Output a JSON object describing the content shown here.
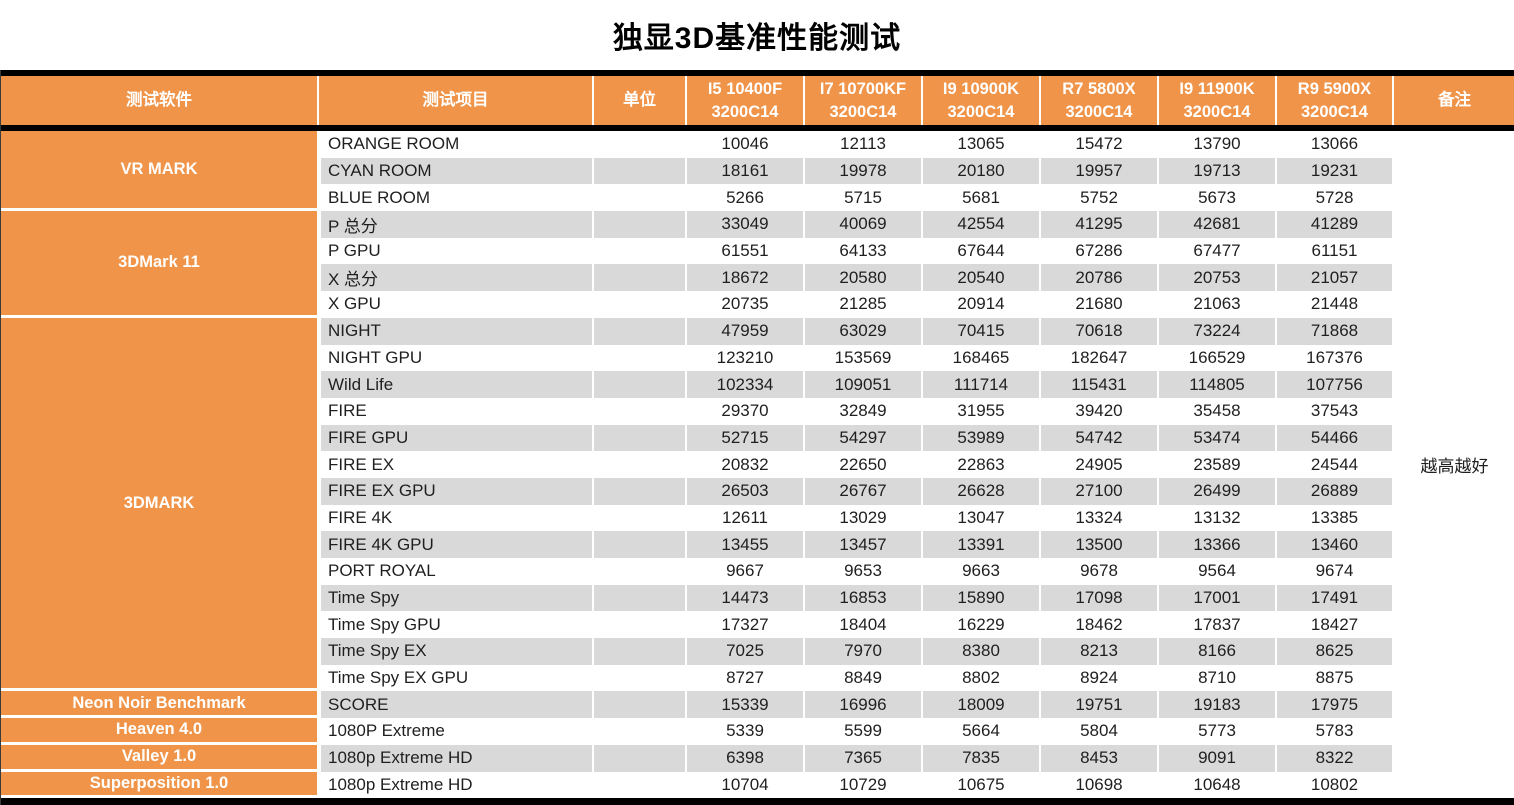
{
  "title": "独显3D基准性能测试",
  "colors": {
    "orange": "#F09449",
    "stripe": "#D9D9D9",
    "band": "#000000"
  },
  "header": {
    "software": "测试软件",
    "item": "测试项目",
    "unit": "单位",
    "cpus": [
      {
        "line1": "I5 10400F",
        "line2": "3200C14"
      },
      {
        "line1": "I7 10700KF",
        "line2": "3200C14"
      },
      {
        "line1": "I9 10900K",
        "line2": "3200C14"
      },
      {
        "line1": "R7 5800X",
        "line2": "3200C14"
      },
      {
        "line1": "I9 11900K",
        "line2": "3200C14"
      },
      {
        "line1": "R9 5900X",
        "line2": "3200C14"
      }
    ],
    "remark": "备注"
  },
  "chart_data": {
    "type": "table",
    "title": "独显3D基准性能测试",
    "columns": [
      "测试软件",
      "测试项目",
      "单位",
      "I5 10400F 3200C14",
      "I7 10700KF 3200C14",
      "I9 10900K 3200C14",
      "R7 5800X 3200C14",
      "I9 11900K 3200C14",
      "R9 5900X 3200C14",
      "备注"
    ],
    "remark": "越高越好",
    "groups": [
      {
        "software": "VR MARK",
        "rows": [
          {
            "item": "ORANGE ROOM",
            "unit": "",
            "values": [
              "10046",
              "12113",
              "13065",
              "15472",
              "13790",
              "13066"
            ]
          },
          {
            "item": "CYAN ROOM",
            "unit": "",
            "values": [
              "18161",
              "19978",
              "20180",
              "19957",
              "19713",
              "19231"
            ]
          },
          {
            "item": "BLUE ROOM",
            "unit": "",
            "values": [
              "5266",
              "5715",
              "5681",
              "5752",
              "5673",
              "5728"
            ]
          }
        ]
      },
      {
        "software": "3DMark 11",
        "rows": [
          {
            "item": "P 总分",
            "unit": "",
            "values": [
              "33049",
              "40069",
              "42554",
              "41295",
              "42681",
              "41289"
            ]
          },
          {
            "item": "P GPU",
            "unit": "",
            "values": [
              "61551",
              "64133",
              "67644",
              "67286",
              "67477",
              "61151"
            ]
          },
          {
            "item": "X 总分",
            "unit": "",
            "values": [
              "18672",
              "20580",
              "20540",
              "20786",
              "20753",
              "21057"
            ]
          },
          {
            "item": "X GPU",
            "unit": "",
            "values": [
              "20735",
              "21285",
              "20914",
              "21680",
              "21063",
              "21448"
            ]
          }
        ]
      },
      {
        "software": "3DMARK",
        "rows": [
          {
            "item": "NIGHT",
            "unit": "",
            "values": [
              "47959",
              "63029",
              "70415",
              "70618",
              "73224",
              "71868"
            ]
          },
          {
            "item": "NIGHT GPU",
            "unit": "",
            "values": [
              "123210",
              "153569",
              "168465",
              "182647",
              "166529",
              "167376"
            ]
          },
          {
            "item": "Wild Life",
            "unit": "",
            "values": [
              "102334",
              "109051",
              "111714",
              "115431",
              "114805",
              "107756"
            ]
          },
          {
            "item": "FIRE",
            "unit": "",
            "values": [
              "29370",
              "32849",
              "31955",
              "39420",
              "35458",
              "37543"
            ]
          },
          {
            "item": "FIRE GPU",
            "unit": "",
            "values": [
              "52715",
              "54297",
              "53989",
              "54742",
              "53474",
              "54466"
            ]
          },
          {
            "item": "FIRE EX",
            "unit": "",
            "values": [
              "20832",
              "22650",
              "22863",
              "24905",
              "23589",
              "24544"
            ]
          },
          {
            "item": "FIRE EX GPU",
            "unit": "",
            "values": [
              "26503",
              "26767",
              "26628",
              "27100",
              "26499",
              "26889"
            ]
          },
          {
            "item": "FIRE 4K",
            "unit": "",
            "values": [
              "12611",
              "13029",
              "13047",
              "13324",
              "13132",
              "13385"
            ]
          },
          {
            "item": "FIRE 4K GPU",
            "unit": "",
            "values": [
              "13455",
              "13457",
              "13391",
              "13500",
              "13366",
              "13460"
            ]
          },
          {
            "item": "PORT ROYAL",
            "unit": "",
            "values": [
              "9667",
              "9653",
              "9663",
              "9678",
              "9564",
              "9674"
            ]
          },
          {
            "item": "Time Spy",
            "unit": "",
            "values": [
              "14473",
              "16853",
              "15890",
              "17098",
              "17001",
              "17491"
            ]
          },
          {
            "item": "Time Spy GPU",
            "unit": "",
            "values": [
              "17327",
              "18404",
              "16229",
              "18462",
              "17837",
              "18427"
            ]
          },
          {
            "item": "Time Spy EX",
            "unit": "",
            "values": [
              "7025",
              "7970",
              "8380",
              "8213",
              "8166",
              "8625"
            ]
          },
          {
            "item": "Time Spy EX GPU",
            "unit": "",
            "values": [
              "8727",
              "8849",
              "8802",
              "8924",
              "8710",
              "8875"
            ]
          }
        ]
      },
      {
        "software": "Neon Noir Benchmark",
        "rows": [
          {
            "item": "SCORE",
            "unit": "",
            "values": [
              "15339",
              "16996",
              "18009",
              "19751",
              "19183",
              "17975"
            ]
          }
        ]
      },
      {
        "software": "Heaven 4.0",
        "rows": [
          {
            "item": "1080P Extreme",
            "unit": "",
            "values": [
              "5339",
              "5599",
              "5664",
              "5804",
              "5773",
              "5783"
            ]
          }
        ]
      },
      {
        "software": "Valley 1.0",
        "rows": [
          {
            "item": "1080p Extreme HD",
            "unit": "",
            "values": [
              "6398",
              "7365",
              "7835",
              "8453",
              "9091",
              "8322"
            ]
          }
        ]
      },
      {
        "software": "Superposition 1.0",
        "rows": [
          {
            "item": "1080p Extreme HD",
            "unit": "",
            "values": [
              "10704",
              "10729",
              "10675",
              "10698",
              "10648",
              "10802"
            ]
          }
        ]
      }
    ]
  }
}
